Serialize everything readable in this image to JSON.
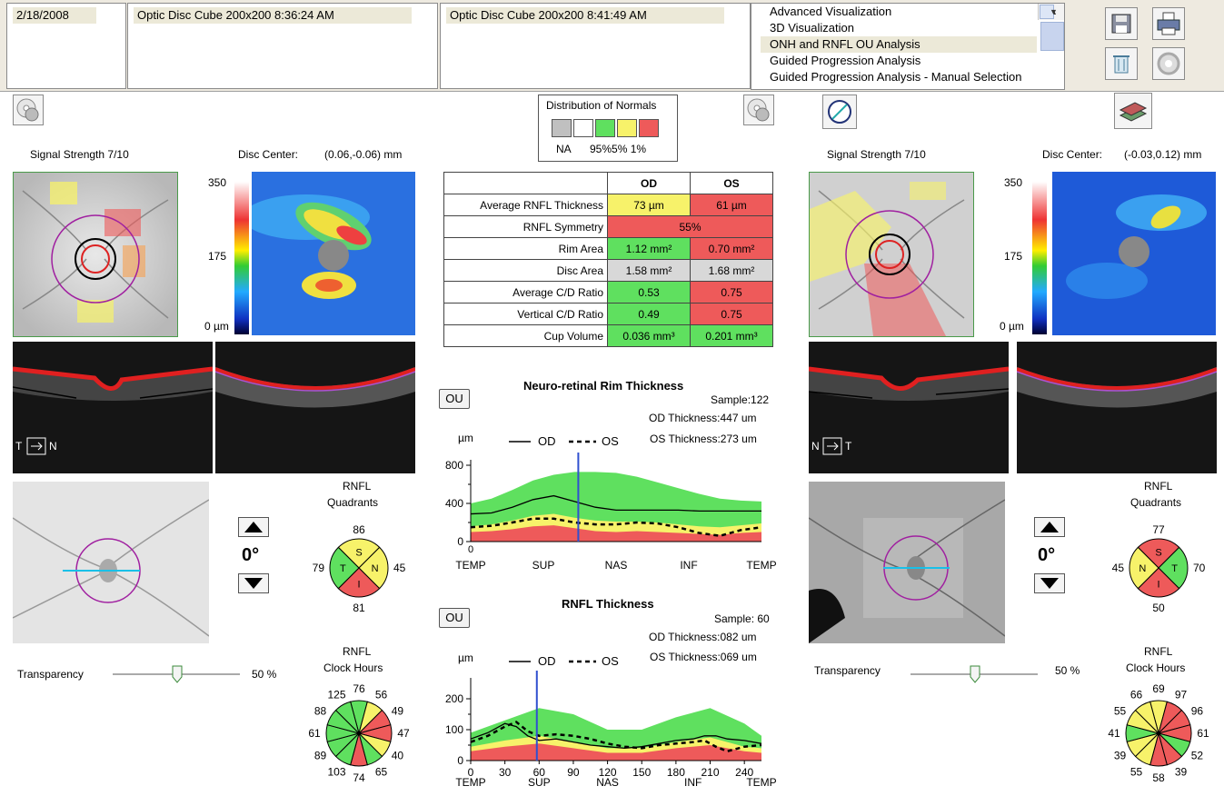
{
  "header": {
    "date": "2/18/2008",
    "scan1": "Optic Disc Cube 200x200    8:36:24 AM",
    "scan2": "Optic Disc Cube 200x200    8:41:49 AM",
    "analyses": [
      "Advanced Visualization",
      "3D Visualization",
      "ONH and RNFL OU Analysis",
      "Guided Progression Analysis",
      "Guided Progression Analysis - Manual Selection"
    ],
    "selected_analysis_index": 2
  },
  "legend": {
    "title": "Distribution of Normals",
    "na": "NA",
    "pct": "95%5% 1%",
    "colors": [
      "#c0c0c0",
      "#ffffff",
      "#5fe05f",
      "#f7f26a",
      "#ee5a5a"
    ]
  },
  "od": {
    "signal": "Signal Strength  7/10",
    "disc_center_label": "Disc Center:",
    "disc_center": "(0.06,-0.06) mm",
    "scale_top": "350",
    "scale_mid": "175",
    "scale_bot": "0 µm",
    "orientation_left": "T",
    "orientation_right": "N",
    "angle": "0°",
    "transparency_label": "Transparency",
    "transparency_value": "50 %",
    "quadrants_title1": "RNFL",
    "quadrants_title2": "Quadrants",
    "quadrants": {
      "S": "86",
      "T": "79",
      "N": "45",
      "I": "81"
    },
    "quadrant_letters": {
      "S": "S",
      "T": "T",
      "N": "N",
      "I": "I"
    },
    "quadrant_colors": {
      "S": "#f7f26a",
      "T": "#5fe05f",
      "N": "#f7f26a",
      "I": "#ee5a5a"
    },
    "clock_title1": "RNFL",
    "clock_title2": "Clock Hours",
    "clock_hours": [
      "76",
      "56",
      "49",
      "47",
      "40",
      "65",
      "74",
      "103",
      "89",
      "61",
      "88",
      "125"
    ],
    "clock_colors": [
      "#5fe05f",
      "#f7f26a",
      "#ee5a5a",
      "#ee5a5a",
      "#f7f26a",
      "#5fe05f",
      "#ee5a5a",
      "#5fe05f",
      "#5fe05f",
      "#5fe05f",
      "#5fe05f",
      "#5fe05f"
    ]
  },
  "os": {
    "signal": "Signal Strength  7/10",
    "disc_center_label": "Disc Center:",
    "disc_center": "(-0.03,0.12) mm",
    "scale_top": "350",
    "scale_mid": "175",
    "scale_bot": "0 µm",
    "orientation_left": "N",
    "orientation_right": "T",
    "angle": "0°",
    "transparency_label": "Transparency",
    "transparency_value": "50 %",
    "quadrants_title1": "RNFL",
    "quadrants_title2": "Quadrants",
    "quadrants": {
      "S": "77",
      "N": "45",
      "T": "70",
      "I": "50"
    },
    "quadrant_letters": {
      "S": "S",
      "N": "N",
      "T": "T",
      "I": "I"
    },
    "quadrant_colors": {
      "S": "#ee5a5a",
      "N": "#f7f26a",
      "T": "#5fe05f",
      "I": "#ee5a5a"
    },
    "clock_title1": "RNFL",
    "clock_title2": "Clock Hours",
    "clock_hours": [
      "69",
      "97",
      "96",
      "61",
      "52",
      "39",
      "58",
      "55",
      "39",
      "41",
      "55",
      "66"
    ],
    "clock_colors": [
      "#f7f26a",
      "#ee5a5a",
      "#ee5a5a",
      "#ee5a5a",
      "#5fe05f",
      "#ee5a5a",
      "#ee5a5a",
      "#f7f26a",
      "#f7f26a",
      "#5fe05f",
      "#f7f26a",
      "#f7f26a"
    ]
  },
  "table": {
    "col_od": "OD",
    "col_os": "OS",
    "rows": [
      {
        "label": "Average RNFL Thickness",
        "od": "73 µm",
        "os": "61 µm",
        "od_color": "y",
        "os_color": "r"
      },
      {
        "label": "RNFL Symmetry",
        "merged": "55%",
        "color": "r"
      },
      {
        "label": "Rim Area",
        "od": "1.12 mm²",
        "os": "0.70 mm²",
        "od_color": "g",
        "os_color": "r"
      },
      {
        "label": "Disc Area",
        "od": "1.58 mm²",
        "os": "1.68 mm²",
        "od_color": "gr",
        "os_color": "gr"
      },
      {
        "label": "Average C/D Ratio",
        "od": "0.53",
        "os": "0.75",
        "od_color": "g",
        "os_color": "r"
      },
      {
        "label": "Vertical C/D Ratio",
        "od": "0.49",
        "os": "0.75",
        "od_color": "g",
        "os_color": "r"
      },
      {
        "label": "Cup Volume",
        "od": "0.036 mm³",
        "os": "0.201 mm³",
        "od_color": "g",
        "os_color": "g"
      }
    ]
  },
  "ou_label": "OU",
  "chart_data": [
    {
      "type": "line",
      "title": "Neuro-retinal Rim Thickness",
      "sample": "Sample:122",
      "od_thickness": "OD Thickness:447 um",
      "os_thickness": "OS Thickness:273 um",
      "ylabel": "µm",
      "legend_od": "OD",
      "legend_os": "OS",
      "ylim": [
        0,
        800
      ],
      "yticks": [
        "0",
        "400",
        "800"
      ],
      "yticks_minor": [
        "200",
        "600"
      ],
      "xticks": [
        "TEMP",
        "SUP",
        "NAS",
        "INF",
        "TEMP"
      ],
      "x_origin_label": "0",
      "series": [
        {
          "name": "OD",
          "values": [
            290,
            300,
            360,
            440,
            480,
            420,
            360,
            330,
            330,
            330,
            330,
            320,
            320,
            320,
            320
          ]
        },
        {
          "name": "OS",
          "values": [
            150,
            165,
            200,
            240,
            240,
            200,
            180,
            180,
            200,
            190,
            150,
            90,
            60,
            120,
            150
          ]
        }
      ],
      "band_red": [
        100,
        110,
        130,
        160,
        170,
        140,
        110,
        100,
        110,
        100,
        90,
        80,
        70,
        90,
        100
      ],
      "band_yellow": [
        160,
        180,
        220,
        270,
        290,
        250,
        220,
        210,
        210,
        200,
        180,
        160,
        150,
        170,
        190
      ],
      "band_green": [
        400,
        450,
        540,
        640,
        700,
        730,
        730,
        720,
        680,
        620,
        560,
        500,
        450,
        430,
        420
      ],
      "marker_x": 0.37
    },
    {
      "type": "line",
      "title": "RNFL Thickness",
      "sample": "Sample: 60",
      "od_thickness": "OD Thickness:082 um",
      "os_thickness": "OS Thickness:069 um",
      "ylabel": "µm",
      "legend_od": "OD",
      "legend_os": "OS",
      "ylim": [
        0,
        250
      ],
      "yticks": [
        "0",
        "100",
        "200"
      ],
      "yticks_minor": [
        "50",
        "150"
      ],
      "xticks": [
        "0",
        "30",
        "60",
        "90",
        "120",
        "150",
        "180",
        "210",
        "240"
      ],
      "xticklabels2": [
        "TEMP",
        "SUP",
        "NAS",
        "INF",
        "TEMP"
      ],
      "xlim": [
        0,
        255
      ],
      "series": [
        {
          "name": "OD",
          "x": [
            0,
            15,
            30,
            40,
            50,
            60,
            75,
            90,
            105,
            120,
            135,
            150,
            165,
            180,
            195,
            205,
            215,
            225,
            240,
            255
          ],
          "values": [
            70,
            90,
            120,
            110,
            80,
            65,
            70,
            60,
            50,
            45,
            40,
            45,
            55,
            65,
            70,
            80,
            80,
            70,
            65,
            55
          ]
        },
        {
          "name": "OS",
          "x": [
            0,
            15,
            30,
            40,
            50,
            60,
            75,
            90,
            105,
            120,
            135,
            150,
            165,
            180,
            195,
            205,
            215,
            225,
            240,
            255
          ],
          "values": [
            60,
            80,
            110,
            125,
            95,
            80,
            85,
            80,
            70,
            55,
            45,
            40,
            50,
            55,
            60,
            65,
            45,
            30,
            45,
            50
          ]
        }
      ],
      "band_red": {
        "x": [
          0,
          30,
          60,
          90,
          120,
          150,
          180,
          210,
          240,
          255
        ],
        "values": [
          30,
          45,
          55,
          40,
          25,
          25,
          40,
          50,
          30,
          25
        ]
      },
      "band_yellow": {
        "x": [
          0,
          30,
          60,
          90,
          120,
          150,
          180,
          210,
          240,
          255
        ],
        "values": [
          45,
          65,
          80,
          60,
          40,
          40,
          60,
          75,
          45,
          40
        ]
      },
      "band_green": {
        "x": [
          0,
          30,
          60,
          90,
          120,
          150,
          180,
          210,
          240,
          255
        ],
        "values": [
          90,
          130,
          170,
          150,
          100,
          100,
          140,
          170,
          120,
          80
        ]
      },
      "marker_x": 58
    }
  ]
}
